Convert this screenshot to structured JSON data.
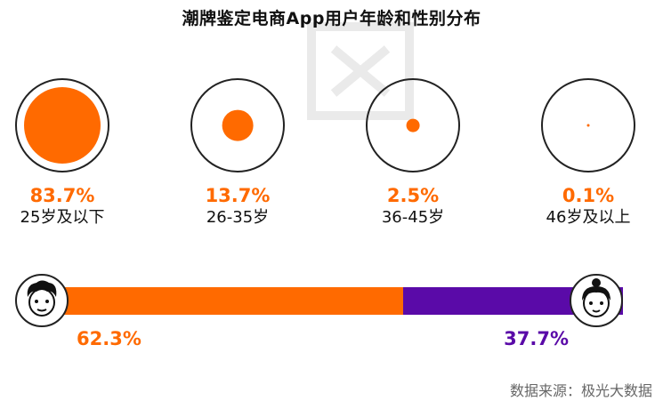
{
  "title": "潮牌鉴定电商App用户年龄和性别分布",
  "source": "数据来源：极光大数据",
  "colors": {
    "orange": "#ff6a00",
    "purple": "#5a0aa8",
    "ring": "#222222"
  },
  "chart_data": [
    {
      "type": "bubble",
      "title": "潮牌鉴定电商App用户年龄和性别分布",
      "categories": [
        "25岁及以下",
        "26-35岁",
        "36-45岁",
        "46岁及以上"
      ],
      "values": [
        83.7,
        13.7,
        2.5,
        0.1
      ],
      "labels": [
        "83.7%",
        "13.7%",
        "2.5%",
        "0.1%"
      ],
      "unit": "%"
    },
    {
      "type": "bar",
      "orientation": "horizontal-stacked",
      "series": [
        {
          "name": "male",
          "value": 62.3,
          "label": "62.3%",
          "icon": "male-face-icon"
        },
        {
          "name": "female",
          "value": 37.7,
          "label": "37.7%",
          "icon": "female-face-icon"
        }
      ],
      "unit": "%"
    }
  ]
}
